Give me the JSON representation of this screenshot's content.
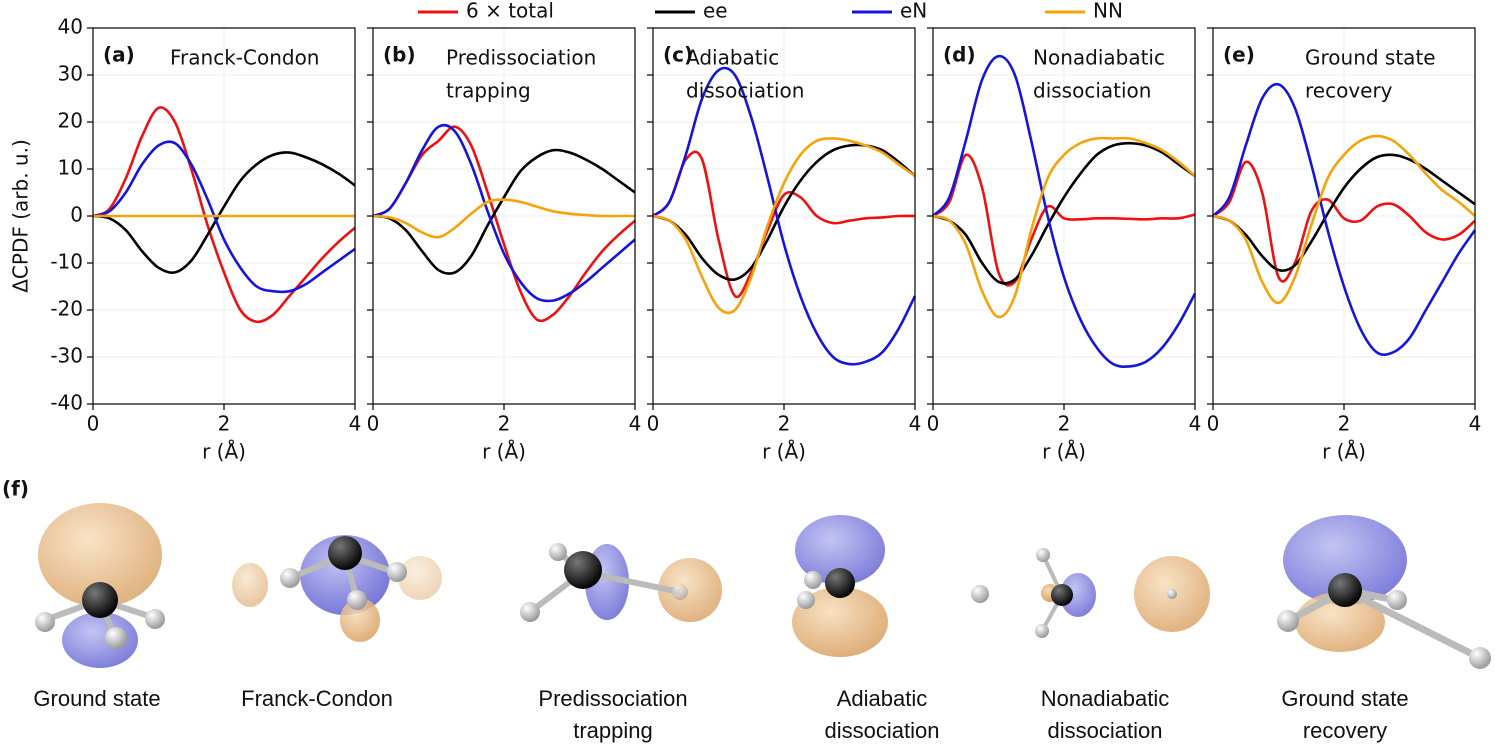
{
  "chart_data": {
    "type": "line",
    "xlabel": "r (Å)",
    "ylabel": "ΔCPDF (arb. u.)",
    "x": [
      0,
      0.25,
      0.5,
      0.75,
      1.0,
      1.25,
      1.5,
      1.75,
      2.0,
      2.25,
      2.5,
      2.75,
      3.0,
      3.25,
      3.5,
      3.75,
      4.0
    ],
    "xlim": [
      0,
      4
    ],
    "ylim": [
      -40,
      40
    ],
    "xticks": [
      0,
      2,
      4
    ],
    "yticks": [
      -40,
      -30,
      -20,
      -10,
      0,
      10,
      20,
      30,
      40
    ],
    "grid": true,
    "series": [
      {
        "name": "6 × total",
        "color": "#ee1111"
      },
      {
        "name": "ee",
        "color": "#000000"
      },
      {
        "name": "eN",
        "color": "#1515e0"
      },
      {
        "name": "NN",
        "color": "#f5a30a"
      }
    ],
    "panels": [
      {
        "label": "(a)",
        "title": [
          "Franck-Condon"
        ],
        "values": [
          [
            0,
            1.5,
            8,
            17,
            23,
            20,
            10,
            -2,
            -12,
            -20,
            -22.5,
            -21,
            -17,
            -13,
            -9,
            -5.5,
            -2.5
          ],
          [
            0,
            -0.5,
            -3,
            -7.5,
            -11,
            -12,
            -9.5,
            -4,
            2,
            7.5,
            11,
            13,
            13.5,
            12.5,
            11,
            9,
            6.5
          ],
          [
            0,
            1,
            5,
            11,
            15,
            15.5,
            11,
            3.5,
            -5,
            -11,
            -15,
            -16,
            -16,
            -14.5,
            -12,
            -9.5,
            -7
          ],
          [
            0,
            0,
            0,
            0,
            0,
            0,
            0,
            0,
            0,
            0,
            0,
            0,
            0,
            0,
            0,
            0,
            0
          ]
        ]
      },
      {
        "label": "(b)",
        "title": [
          "Predissociation",
          "trapping"
        ],
        "values": [
          [
            0,
            1.5,
            7,
            13,
            16,
            19,
            15,
            5,
            -6,
            -16,
            -22,
            -21,
            -17,
            -12,
            -7.5,
            -4,
            -1
          ],
          [
            0,
            -0.5,
            -3,
            -7.5,
            -11.5,
            -12,
            -8.5,
            -2,
            4,
            9.5,
            12.5,
            14,
            13.5,
            12,
            10,
            7.5,
            5
          ],
          [
            0,
            1.5,
            7,
            14,
            19,
            18,
            11,
            1,
            -8,
            -14,
            -17.5,
            -18,
            -16.5,
            -14,
            -11,
            -8,
            -5
          ],
          [
            0,
            -0.3,
            -1.5,
            -3.5,
            -4.5,
            -2.5,
            0.5,
            3,
            3.5,
            3,
            2,
            1,
            0.5,
            0.2,
            0,
            0,
            0
          ]
        ]
      },
      {
        "label": "(c)",
        "title": [
          "Adiabatic",
          "dissociation"
        ],
        "values": [
          [
            0,
            3,
            12,
            12,
            -5,
            -17,
            -12,
            -3,
            4.5,
            4,
            0,
            -1.5,
            -1,
            -0.5,
            -0.3,
            0,
            0
          ],
          [
            0,
            -1,
            -4,
            -9,
            -12.5,
            -13.5,
            -11,
            -5,
            2,
            7.5,
            11.5,
            14,
            15,
            15,
            14,
            11.5,
            8.5
          ],
          [
            0,
            3,
            13,
            25,
            31,
            30,
            21,
            8,
            -6,
            -17,
            -25,
            -30,
            -31.5,
            -31,
            -29,
            -24,
            -17
          ],
          [
            0,
            -1,
            -5,
            -13,
            -19.5,
            -20,
            -13,
            -2,
            7,
            13,
            16,
            16.5,
            16,
            15,
            13.5,
            11,
            8.5
          ]
        ]
      },
      {
        "label": "(d)",
        "title": [
          "Nonadiabatic",
          "dissociation"
        ],
        "values": [
          [
            0,
            3,
            13,
            6,
            -12,
            -14,
            -5,
            2,
            -0.5,
            -0.7,
            -0.5,
            -0.5,
            -0.6,
            -0.7,
            -0.5,
            -0.5,
            0.3
          ],
          [
            0,
            -1,
            -4,
            -10,
            -14,
            -13.5,
            -8.5,
            -2,
            4,
            9,
            13,
            15,
            15.5,
            15,
            13.5,
            11,
            8.5
          ],
          [
            0,
            4,
            16,
            29,
            34,
            30,
            16,
            0,
            -13,
            -22,
            -28,
            -31.5,
            -32,
            -31,
            -28,
            -23,
            -16.5
          ],
          [
            0,
            -1,
            -6,
            -16,
            -21.5,
            -17,
            -3,
            8,
            13,
            15.5,
            16.5,
            16.5,
            16.5,
            15.5,
            14,
            11.5,
            8.5
          ]
        ]
      },
      {
        "label": "(e)",
        "title": [
          "Ground state",
          "recovery"
        ],
        "values": [
          [
            0,
            3,
            11.5,
            5,
            -13,
            -10,
            1,
            3.5,
            -0.5,
            -1,
            2,
            2.5,
            0,
            -3.5,
            -5,
            -4,
            -1
          ],
          [
            0,
            -1,
            -4,
            -8.5,
            -11.5,
            -10.5,
            -5.5,
            0.5,
            6,
            10,
            12.5,
            13,
            12,
            10,
            7.5,
            5,
            2.5
          ],
          [
            0,
            4,
            15,
            25,
            28,
            23,
            11,
            -3,
            -15,
            -24,
            -29,
            -29,
            -26,
            -20,
            -14,
            -8,
            -3
          ],
          [
            0,
            -1,
            -5,
            -14,
            -18.5,
            -13,
            -2,
            8,
            13,
            16,
            17,
            16,
            13,
            9,
            5.5,
            3,
            0
          ]
        ]
      }
    ]
  },
  "structures": {
    "label": "(f)",
    "captions": [
      [
        "Ground state"
      ],
      [
        "Franck-Condon"
      ],
      [
        "Predissociation",
        "trapping"
      ],
      [
        "Adiabatic",
        "dissociation"
      ],
      [
        "Nonadiabatic",
        "dissociation"
      ],
      [
        "Ground state",
        "recovery"
      ]
    ]
  }
}
